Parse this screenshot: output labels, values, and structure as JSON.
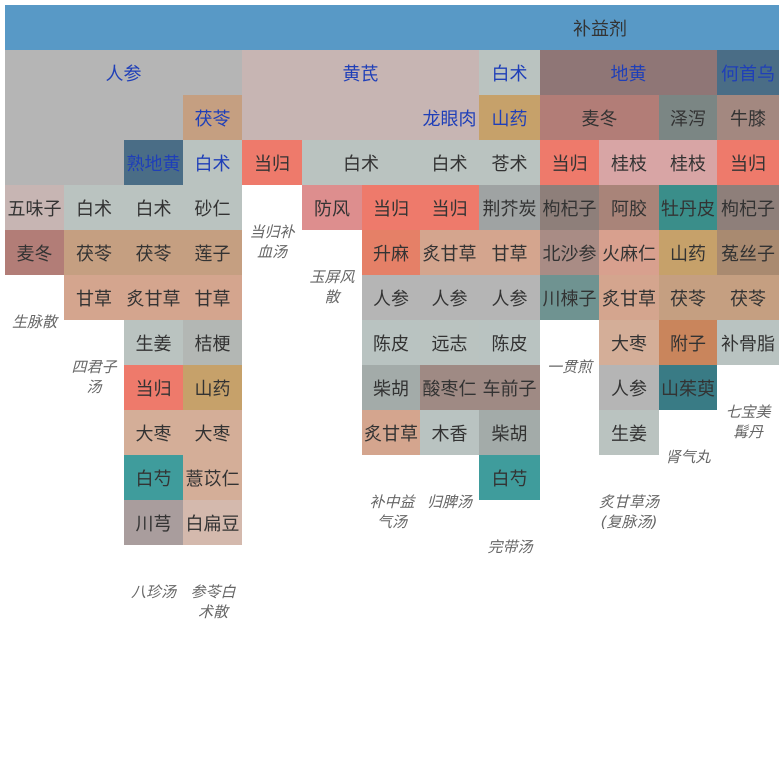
{
  "diagram": {
    "root": "补益剂",
    "groups": [
      "人参",
      "黄芪",
      "白术",
      "地黄",
      "何首乌"
    ],
    "formulas": [
      {
        "name": "生脉散",
        "herbs": [
          "人参",
          "麦冬",
          "五味子"
        ]
      },
      {
        "name": "四君子汤",
        "herbs": [
          "人参",
          "白术",
          "茯苓",
          "甘草"
        ]
      },
      {
        "name": "八珍汤",
        "herbs": [
          "人参",
          "熟地黄",
          "白术",
          "茯苓",
          "炙甘草",
          "生姜",
          "当归",
          "大枣",
          "白芍",
          "川芎"
        ]
      },
      {
        "name": "参苓白术散",
        "herbs": [
          "人参",
          "白术",
          "茯苓",
          "砂仁",
          "莲子",
          "甘草",
          "桔梗",
          "山药",
          "大枣",
          "薏苡仁",
          "白扁豆"
        ]
      },
      {
        "name": "当归补血汤",
        "herbs": [
          "黄芪",
          "当归"
        ]
      },
      {
        "name": "玉屏风散",
        "herbs": [
          "黄芪",
          "白术",
          "防风"
        ]
      },
      {
        "name": "补中益气汤",
        "herbs": [
          "黄芪",
          "白术",
          "当归",
          "升麻",
          "人参",
          "陈皮",
          "柴胡",
          "炙甘草"
        ]
      },
      {
        "name": "归脾汤",
        "herbs": [
          "黄芪",
          "龙眼肉",
          "白术",
          "当归",
          "炙甘草",
          "人参",
          "远志",
          "酸枣仁",
          "木香"
        ]
      },
      {
        "name": "完带汤",
        "herbs": [
          "白术",
          "山药",
          "苍术",
          "荆芥炭",
          "甘草",
          "人参",
          "陈皮",
          "车前子",
          "柴胡",
          "白芍"
        ]
      },
      {
        "name": "一贯煎",
        "herbs": [
          "地黄",
          "麦冬",
          "当归",
          "枸杞子",
          "北沙参",
          "川楝子"
        ]
      },
      {
        "name": "炙甘草汤(复脉汤)",
        "herbs": [
          "地黄",
          "麦冬",
          "桂枝",
          "阿胶",
          "火麻仁",
          "炙甘草",
          "大枣",
          "人参",
          "生姜"
        ]
      },
      {
        "name": "肾气丸",
        "herbs": [
          "地黄",
          "泽泻",
          "桂枝",
          "牡丹皮",
          "山药",
          "茯苓",
          "附子",
          "山茱萸"
        ]
      },
      {
        "name": "七宝美髯丹",
        "herbs": [
          "何首乌",
          "牛膝",
          "当归",
          "枸杞子",
          "菟丝子",
          "茯苓",
          "补骨脂"
        ]
      }
    ]
  },
  "colors": {
    "root": "#5899C6",
    "group_text": "#1F3FB8",
    "cell_text": "#333333",
    "caption_text": "#666666",
    "renshen": "#B5B5B5",
    "huangqi": "#C7B5B3",
    "baizhu": "#BAC3C0",
    "dihuang": "#8F7676",
    "heshouwu": "#4A6D86",
    "shudihuang": "#4A6D86",
    "fuling": "#C59F81",
    "danggui": "#EE7A6B",
    "wuweizi": "#C7B5B3",
    "maidong": "#B27D77",
    "gancao": "#D4A58E",
    "lianzi": "#C59F81",
    "zhigancao": "#D4A58E",
    "sharen": "#BAC3C0",
    "shengjiang": "#BAC3C0",
    "jiegeng": "#B3B7B4",
    "shanyao": "#C6A16A",
    "dazao": "#D4AE98",
    "baishao": "#3F9C9C",
    "yiyiren": "#D4AE98",
    "chuanxiong": "#A99D9D",
    "baibiandou": "#D4B9AD",
    "fangfeng": "#DD8E8E",
    "shengma": "#E58067",
    "chenpi": "#B9C3C1",
    "chaihu": "#A3ABA9",
    "longyanrou": "#C7B5B3",
    "yuanzhi": "#BAC3C0",
    "suanzaoren": "#9F8A84",
    "muxiang": "#B9C3C1",
    "cangzhu": "#BAC3C0",
    "jingjietan": "#9FA3A3",
    "cheqianzi": "#9F8A84",
    "gouqizi": "#8E7F7A",
    "beishashen": "#A98C85",
    "chuanlianzi": "#6F9391",
    "guizhi": "#D8A5A5",
    "ejiao": "#A98479",
    "huomaren": "#D8A08E",
    "zexie": "#7B8684",
    "mudanpi": "#3A8E8A",
    "fuzi": "#C9855C",
    "shanzhuyu": "#397B85",
    "niuxi": "#A38880",
    "tusizi": "#A98A70",
    "buguzhi": "#B9C3C1"
  }
}
